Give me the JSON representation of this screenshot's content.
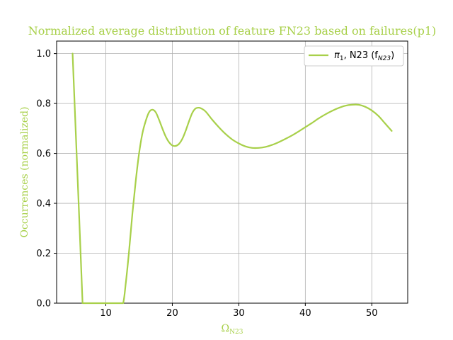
{
  "chart_data": {
    "type": "line",
    "title": "Normalized average distribution of feature FN23 based on failures(p1)",
    "xlabel": "Ω",
    "xlabel_sub": "N23",
    "ylabel": "Occurrences (normalized)",
    "xlim": [
      2.6,
      55.4
    ],
    "ylim": [
      0.0,
      1.05
    ],
    "xticks": [
      10,
      20,
      30,
      40,
      50
    ],
    "yticks": [
      0.0,
      0.2,
      0.4,
      0.6,
      0.8,
      1.0
    ],
    "grid": true,
    "legend_placement": "top-right",
    "colors": {
      "series": "#a8d04a",
      "title": "#a8d04a",
      "grid": "#b0b0b0"
    },
    "series": [
      {
        "name": "π",
        "name_sub": "1",
        "name_mid": ", N23 (f",
        "name_sub2": "N23",
        "name_end": ")",
        "x": [
          5.0,
          5.5,
          6.0,
          6.5,
          7.0,
          8.0,
          9.0,
          10.0,
          11.0,
          12.0,
          12.6,
          13.0,
          13.5,
          14.0,
          14.5,
          15.0,
          15.5,
          16.0,
          16.5,
          17.0,
          17.5,
          18.0,
          18.5,
          19.0,
          19.5,
          20.0,
          20.5,
          21.0,
          21.5,
          22.0,
          22.5,
          23.0,
          23.5,
          24.0,
          24.5,
          25.0,
          25.5,
          26.0,
          27.0,
          28.0,
          29.0,
          30.0,
          31.0,
          32.0,
          33.0,
          34.0,
          35.0,
          36.0,
          37.0,
          38.0,
          39.0,
          40.0,
          41.0,
          42.0,
          43.0,
          44.0,
          45.0,
          46.0,
          47.0,
          48.0,
          49.0,
          50.0,
          51.0,
          52.0,
          53.0
        ],
        "y": [
          1.0,
          0.67,
          0.34,
          0.0,
          0.0,
          0.0,
          0.0,
          0.0,
          0.0,
          0.0,
          0.0,
          0.08,
          0.21,
          0.36,
          0.49,
          0.6,
          0.68,
          0.73,
          0.765,
          0.775,
          0.765,
          0.735,
          0.7,
          0.668,
          0.645,
          0.632,
          0.63,
          0.638,
          0.658,
          0.69,
          0.728,
          0.762,
          0.78,
          0.783,
          0.778,
          0.768,
          0.752,
          0.735,
          0.705,
          0.678,
          0.656,
          0.64,
          0.628,
          0.622,
          0.622,
          0.626,
          0.634,
          0.645,
          0.658,
          0.672,
          0.688,
          0.705,
          0.722,
          0.74,
          0.756,
          0.77,
          0.782,
          0.791,
          0.795,
          0.795,
          0.787,
          0.772,
          0.75,
          0.72,
          0.69
        ]
      }
    ]
  }
}
